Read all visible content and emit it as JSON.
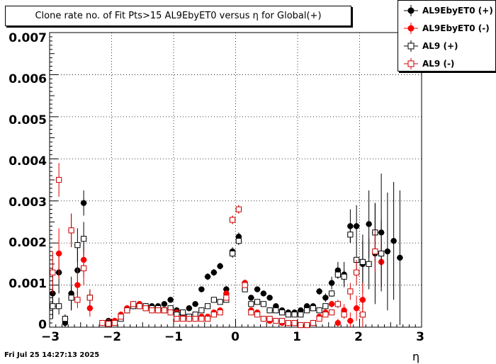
{
  "chart_data": {
    "type": "scatter",
    "title": "Clone rate no. of Fit Pts>15 AL9EbyET0 versus η for Global(+)",
    "xlabel": "η",
    "ylabel": "",
    "xlim": [
      -3,
      3
    ],
    "ylim": [
      0,
      0.007
    ],
    "x_ticks": [
      "−3",
      "−2",
      "−1",
      "0",
      "1",
      "2",
      "3"
    ],
    "y_ticks": [
      "0",
      "0.001",
      "0.002",
      "0.003",
      "0.004",
      "0.005",
      "0.006",
      "0.007"
    ],
    "grid": true,
    "legend_position": "top-right",
    "series": [
      {
        "name": "AL9EbyET0 (+)",
        "color": "#000000",
        "marker": "filled-circle",
        "x": [
          -2.95,
          -2.85,
          -2.75,
          -2.65,
          -2.55,
          -2.45,
          -2.05,
          -1.95,
          -1.85,
          -1.75,
          -1.65,
          -1.55,
          -1.45,
          -1.35,
          -1.25,
          -1.15,
          -1.05,
          -0.95,
          -0.85,
          -0.75,
          -0.65,
          -0.55,
          -0.45,
          -0.35,
          -0.25,
          -0.15,
          -0.05,
          0.05,
          0.15,
          0.25,
          0.35,
          0.45,
          0.55,
          0.65,
          0.75,
          0.85,
          0.95,
          1.05,
          1.15,
          1.25,
          1.35,
          1.45,
          1.55,
          1.65,
          1.75,
          1.85,
          1.95,
          2.05,
          2.15,
          2.25,
          2.35,
          2.45,
          2.55,
          2.65
        ],
        "y": [
          0.0008,
          0.0013,
          0.0001,
          0.0008,
          0.00135,
          0.00295,
          0.00015,
          0.00015,
          0.00025,
          0.0004,
          0.0005,
          0.00055,
          0.0005,
          0.0005,
          0.0005,
          0.00055,
          0.00065,
          0.0004,
          0.0003,
          0.00045,
          0.00055,
          0.0009,
          0.0012,
          0.0013,
          0.00145,
          0.0009,
          0.0018,
          0.00215,
          0.00105,
          0.0007,
          0.0009,
          0.0008,
          0.0007,
          0.0005,
          0.0004,
          0.00035,
          0.00035,
          0.0004,
          0.0005,
          0.0005,
          0.00085,
          0.0007,
          0.00105,
          0.00135,
          0.00125,
          0.0024,
          0.0024,
          0.0015,
          0.00245,
          0.00175,
          0.00225,
          0.0018,
          0.00205,
          0.00165
        ],
        "y_err": [
          0.0006,
          0.0005,
          0.0002,
          0.0004,
          0.0006,
          0.0003,
          5e-05,
          5e-05,
          5e-05,
          5e-05,
          5e-05,
          5e-05,
          5e-05,
          5e-05,
          5e-05,
          5e-05,
          5e-05,
          5e-05,
          5e-05,
          5e-05,
          5e-05,
          5e-05,
          8e-05,
          8e-05,
          8e-05,
          8e-05,
          0.0001,
          0.0001,
          8e-05,
          5e-05,
          5e-05,
          5e-05,
          5e-05,
          5e-05,
          5e-05,
          5e-05,
          5e-05,
          5e-05,
          5e-05,
          5e-05,
          8e-05,
          0.0001,
          0.00015,
          0.0002,
          0.0003,
          0.0004,
          0.0005,
          0.0007,
          0.0008,
          0.0012,
          0.0014,
          0.0014,
          0.0014,
          0.0016
        ]
      },
      {
        "name": "AL9EbyET0 (-)",
        "color": "#ff0000",
        "marker": "filled-circle",
        "x": [
          -2.85,
          -2.65,
          -2.55,
          -2.45,
          -2.35,
          -2.15,
          -2.05,
          -1.95,
          -1.85,
          -1.75,
          -1.65,
          -1.55,
          -1.45,
          -1.35,
          -1.25,
          -1.15,
          -1.05,
          -0.95,
          -0.85,
          -0.75,
          -0.65,
          -0.55,
          -0.45,
          -0.35,
          -0.25,
          -0.15,
          -0.05,
          0.05,
          0.15,
          0.25,
          0.35,
          0.45,
          0.55,
          0.65,
          0.75,
          0.85,
          0.95,
          1.05,
          1.15,
          1.25,
          1.35,
          1.45,
          1.55,
          1.65,
          1.75,
          1.85,
          1.95,
          2.05,
          2.35
        ],
        "y": [
          0.00175,
          0.0023,
          0.001,
          0.0016,
          0.00045,
          0.0001,
          0.00012,
          0.00015,
          0.0003,
          0.00045,
          0.00055,
          0.00055,
          0.00045,
          0.0004,
          0.0004,
          0.0004,
          0.0004,
          0.00035,
          0.00025,
          0.0002,
          0.0002,
          0.00025,
          0.00025,
          0.00035,
          0.0004,
          0.0008,
          0.00255,
          0.0028,
          0.00105,
          0.0004,
          0.00035,
          0.0002,
          0.00015,
          0.00015,
          0.0001,
          0.0001,
          0.0001,
          5e-05,
          5e-05,
          0.0001,
          0.00025,
          0.00035,
          0.00055,
          0.0001,
          0.0004,
          0.00015,
          0.00045,
          0.00065,
          0.00155
        ],
        "y_err": [
          0.0006,
          0.0004,
          0.0004,
          0.0004,
          0.0002,
          5e-05,
          5e-05,
          5e-05,
          5e-05,
          5e-05,
          5e-05,
          5e-05,
          5e-05,
          5e-05,
          5e-05,
          5e-05,
          5e-05,
          5e-05,
          5e-05,
          5e-05,
          5e-05,
          5e-05,
          5e-05,
          5e-05,
          5e-05,
          8e-05,
          0.0001,
          0.0001,
          8e-05,
          5e-05,
          5e-05,
          5e-05,
          5e-05,
          5e-05,
          5e-05,
          5e-05,
          5e-05,
          5e-05,
          5e-05,
          5e-05,
          5e-05,
          8e-05,
          8e-05,
          0.0001,
          0.00015,
          0.0002,
          0.0003,
          0.0004,
          0.0006
        ]
      },
      {
        "name": "AL9 (+)",
        "color": "#000000",
        "marker": "open-square",
        "x": [
          -2.95,
          -2.85,
          -2.75,
          -2.65,
          -2.55,
          -2.45,
          -2.35,
          -2.05,
          -1.95,
          -1.85,
          -1.75,
          -1.65,
          -1.55,
          -1.45,
          -1.35,
          -1.25,
          -1.15,
          -1.05,
          -0.95,
          -0.85,
          -0.75,
          -0.65,
          -0.55,
          -0.45,
          -0.35,
          -0.25,
          -0.15,
          -0.05,
          0.05,
          0.15,
          0.25,
          0.35,
          0.45,
          0.55,
          0.65,
          0.75,
          0.85,
          0.95,
          1.05,
          1.15,
          1.25,
          1.35,
          1.45,
          1.55,
          1.65,
          1.75,
          1.85,
          1.95,
          2.05,
          2.15,
          2.25,
          2.35
        ],
        "y": [
          0.0005,
          0.0005,
          0.0002,
          0.0007,
          0.00195,
          0.0021,
          0.0007,
          0.0001,
          0.0001,
          0.0002,
          0.0004,
          0.0005,
          0.0005,
          0.0005,
          0.00045,
          0.00045,
          0.0004,
          0.00045,
          0.0003,
          0.00035,
          0.00025,
          0.0003,
          0.0004,
          0.0005,
          0.00065,
          0.0006,
          0.00065,
          0.00175,
          0.00205,
          0.0009,
          0.00055,
          0.0006,
          0.00055,
          0.0004,
          0.0004,
          0.00035,
          0.0003,
          0.0003,
          0.0003,
          0.0004,
          0.00045,
          0.0004,
          0.0005,
          0.0008,
          0.00125,
          0.0012,
          0.0022,
          0.0016,
          0.00155,
          0.0015,
          0.00225,
          0.00175
        ],
        "y_err": [
          0.0003,
          0.0002,
          0.0001,
          0.0003,
          0.0004,
          0.0004,
          0.0002,
          5e-05,
          5e-05,
          5e-05,
          5e-05,
          5e-05,
          5e-05,
          5e-05,
          5e-05,
          5e-05,
          5e-05,
          5e-05,
          5e-05,
          5e-05,
          5e-05,
          5e-05,
          5e-05,
          5e-05,
          5e-05,
          5e-05,
          5e-05,
          0.0001,
          0.0001,
          5e-05,
          5e-05,
          5e-05,
          5e-05,
          5e-05,
          5e-05,
          5e-05,
          5e-05,
          5e-05,
          5e-05,
          5e-05,
          5e-05,
          5e-05,
          5e-05,
          8e-05,
          0.0001,
          0.00015,
          0.0002,
          0.0003,
          0.0005,
          0.0006,
          0.0007,
          0.0008
        ]
      },
      {
        "name": "AL9 (-)",
        "color": "#cc0000",
        "marker": "open-square",
        "x": [
          -2.95,
          -2.85,
          -2.65,
          -2.55,
          -2.45,
          -2.35,
          -2.15,
          -2.05,
          -1.95,
          -1.85,
          -1.75,
          -1.65,
          -1.55,
          -1.45,
          -1.35,
          -1.25,
          -1.15,
          -1.05,
          -0.95,
          -0.85,
          -0.75,
          -0.65,
          -0.55,
          -0.45,
          -0.35,
          -0.25,
          -0.15,
          -0.05,
          0.05,
          0.15,
          0.25,
          0.35,
          0.45,
          0.55,
          0.65,
          0.75,
          0.85,
          0.95,
          1.05,
          1.15,
          1.25,
          1.35,
          1.45,
          1.55,
          1.65,
          1.75,
          1.85,
          1.95,
          2.05,
          2.25
        ],
        "y": [
          0.0013,
          0.0035,
          0.0023,
          0.00065,
          0.0014,
          0.0007,
          0.0001,
          8e-05,
          0.0001,
          0.00025,
          0.0004,
          0.00055,
          0.0005,
          0.00045,
          0.0004,
          0.0004,
          0.0004,
          0.00035,
          0.0002,
          0.0002,
          0.0002,
          0.0002,
          0.0002,
          0.0002,
          0.0003,
          0.00035,
          0.0007,
          0.00255,
          0.0028,
          0.001,
          0.00035,
          0.0003,
          0.0002,
          0.0002,
          0.00015,
          0.00015,
          0.0001,
          0.0001,
          5e-05,
          5e-05,
          0.0001,
          0.0002,
          0.0003,
          0.00035,
          0.00055,
          0.0003,
          0.00085,
          0.0013,
          0.0003,
          0.0018
        ],
        "y_err": [
          0.0005,
          0.0004,
          0.0004,
          0.0002,
          0.0004,
          0.0002,
          5e-05,
          5e-05,
          5e-05,
          5e-05,
          5e-05,
          5e-05,
          5e-05,
          5e-05,
          5e-05,
          5e-05,
          5e-05,
          5e-05,
          5e-05,
          5e-05,
          5e-05,
          5e-05,
          5e-05,
          5e-05,
          5e-05,
          5e-05,
          5e-05,
          0.0001,
          0.0001,
          5e-05,
          5e-05,
          5e-05,
          5e-05,
          5e-05,
          5e-05,
          5e-05,
          5e-05,
          5e-05,
          5e-05,
          5e-05,
          5e-05,
          5e-05,
          5e-05,
          5e-05,
          0.0001,
          0.0001,
          0.0002,
          0.0003,
          0.0003,
          0.0005
        ]
      }
    ]
  },
  "footer": {
    "timestamp": "Fri Jul 25 14:27:13 2025"
  }
}
